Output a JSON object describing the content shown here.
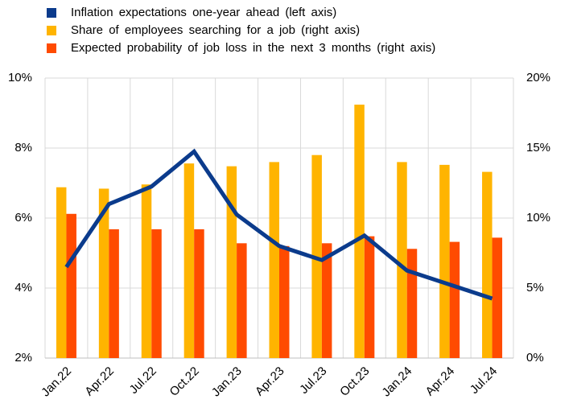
{
  "chart_data": {
    "type": "bar_line",
    "categories": [
      "Jan.22",
      "Apr.22",
      "Jul.22",
      "Oct.22",
      "Jan.23",
      "Apr.23",
      "Jul.23",
      "Oct.23",
      "Jan.24",
      "Apr.24",
      "Jul.24"
    ],
    "series": [
      {
        "name": "Inflation expectations one-year ahead (left axis)",
        "type": "line",
        "color": "#0b3b8c",
        "axis": "y",
        "values": [
          4.6,
          6.4,
          6.9,
          7.9,
          6.1,
          5.2,
          4.8,
          5.5,
          4.5,
          4.1,
          3.7
        ]
      },
      {
        "name": "Share of employees searching for a job (right axis)",
        "type": "bar",
        "color": "#ffb400",
        "axis": "y2",
        "values": [
          12.2,
          12.1,
          12.4,
          13.9,
          13.7,
          14.0,
          14.5,
          18.1,
          14.0,
          13.8,
          13.3
        ]
      },
      {
        "name": "Expected probability of job loss in the next 3 months (right axis)",
        "type": "bar",
        "color": "#ff4b00",
        "axis": "y2",
        "values": [
          10.3,
          9.2,
          9.2,
          9.2,
          8.2,
          8.0,
          8.2,
          8.7,
          7.8,
          8.3,
          8.6
        ]
      }
    ],
    "ylim": [
      2,
      10
    ],
    "yticks": [
      {
        "value": 2,
        "label": "2%"
      },
      {
        "value": 4,
        "label": "4%"
      },
      {
        "value": 6,
        "label": "6%"
      },
      {
        "value": 8,
        "label": "8%"
      },
      {
        "value": 10,
        "label": "10%"
      }
    ],
    "y2lim": [
      0,
      20
    ],
    "y2ticks": [
      {
        "value": 0,
        "label": "0%"
      },
      {
        "value": 5,
        "label": "5%"
      },
      {
        "value": 10,
        "label": "10%"
      },
      {
        "value": 15,
        "label": "15%"
      },
      {
        "value": 20,
        "label": "20%"
      }
    ],
    "grid": true,
    "legend": "top"
  }
}
